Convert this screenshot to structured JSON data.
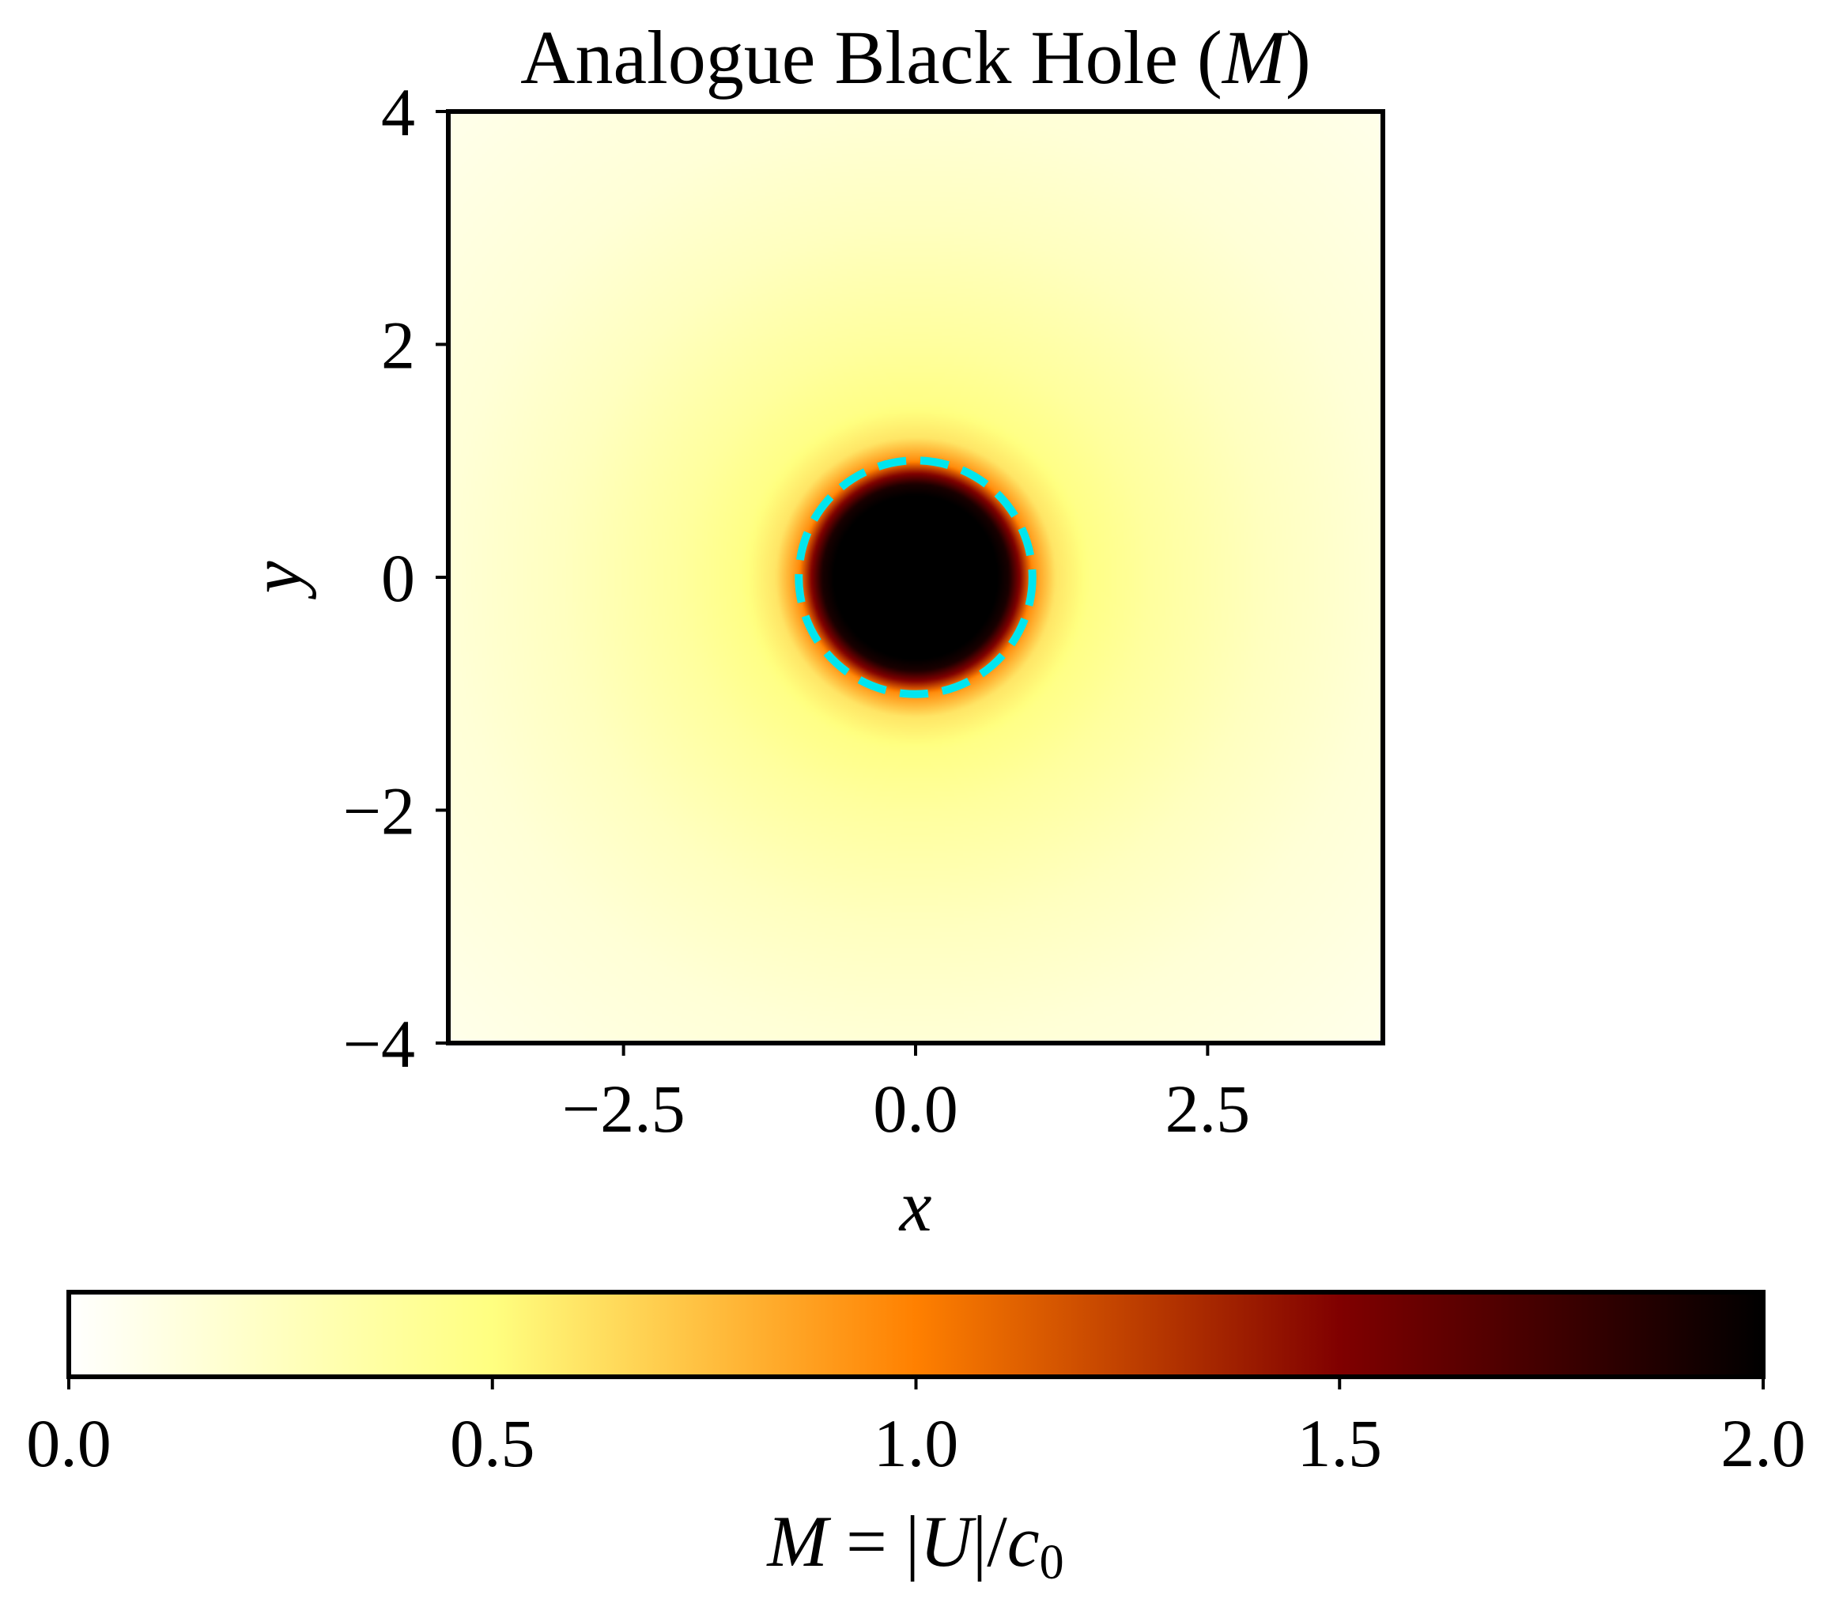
{
  "figure": {
    "title_prefix": "Analogue Black Hole (",
    "title_symbol": "M",
    "title_suffix": ")"
  },
  "chart_data": {
    "type": "heatmap",
    "title": "Analogue Black Hole (M)",
    "xlabel": "x",
    "ylabel": "y",
    "xlim": [
      -4,
      4
    ],
    "ylim": [
      -4,
      4
    ],
    "x_ticks": [
      -2.5,
      0.0,
      2.5
    ],
    "x_tick_labels": [
      "−2.5",
      "0.0",
      "2.5"
    ],
    "y_ticks": [
      4,
      2,
      0,
      -2,
      -4
    ],
    "y_tick_labels": [
      "4",
      "2",
      "0",
      "−2",
      "−4"
    ],
    "field": {
      "description_profile_r": [
        0.0,
        0.7,
        0.8,
        0.9,
        1.0,
        1.2,
        1.5,
        2.0,
        3.0,
        4.0,
        5.66
      ],
      "description_profile_M": [
        2.0,
        2.0,
        1.9,
        1.45,
        0.95,
        0.6,
        0.47,
        0.38,
        0.25,
        0.16,
        0.08
      ]
    },
    "horizon": {
      "center": [
        0,
        0
      ],
      "radius": 1.0,
      "style": "dashed",
      "color": "#00e5ee"
    },
    "colorbar": {
      "orientation": "horizontal",
      "placement": "bottom",
      "colormap": "afmhot_r",
      "vmin": 0.0,
      "vmax": 2.0,
      "ticks": [
        0.0,
        0.5,
        1.0,
        1.5,
        2.0
      ],
      "tick_labels": [
        "0.0",
        "0.5",
        "1.0",
        "1.5",
        "2.0"
      ],
      "label_parts": [
        "M",
        " = |",
        "U",
        "|/",
        "c",
        "0"
      ],
      "label": "M = |U|/c0"
    }
  }
}
